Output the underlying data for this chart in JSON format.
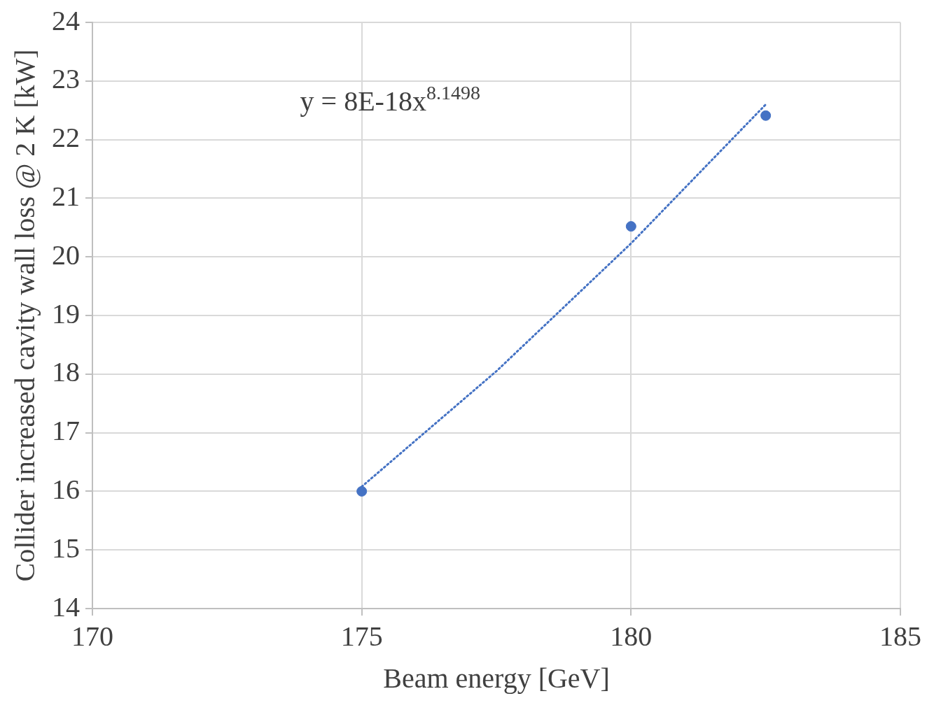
{
  "chart_data": {
    "type": "scatter",
    "xlabel": "Beam energy [GeV]",
    "ylabel": "Collider increased cavity wall loss @ 2 K [kW]",
    "series": [
      {
        "color": "#4472c4",
        "x": [
          175,
          180,
          182.5
        ],
        "values": [
          16.0,
          20.52,
          22.41
        ],
        "marker": "circle"
      },
      {
        "type": "line",
        "color": "#4472c4",
        "x": [
          175,
          177.5,
          180,
          182.5
        ],
        "values": [
          16.08,
          18.05,
          20.23,
          22.6
        ],
        "line_style": "dotted",
        "marker": "none"
      }
    ],
    "annotations": [
      "y = 8E-18x$^{8.1498}$"
    ],
    "xlim": [
      170,
      185
    ],
    "xticks": [
      170,
      175,
      180,
      185
    ],
    "ylim": [
      14,
      24
    ],
    "yticks": [
      14,
      15,
      16,
      17,
      18,
      19,
      20,
      21,
      22,
      23,
      24
    ],
    "grid": true,
    "legend": false
  }
}
